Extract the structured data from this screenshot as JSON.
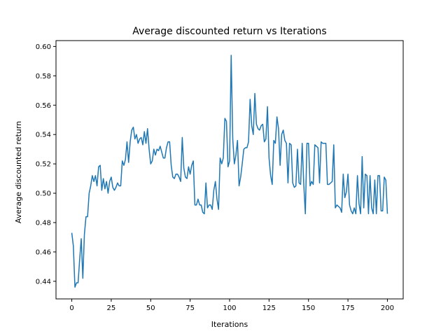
{
  "chart_data": {
    "type": "line",
    "title": "Average discounted return vs Iterations",
    "xlabel": "Iterations",
    "ylabel": "Average discounted return",
    "xlim": [
      -10,
      210
    ],
    "ylim": [
      0.428,
      0.604
    ],
    "x_ticks": [
      0,
      25,
      50,
      75,
      100,
      125,
      150,
      175,
      200
    ],
    "y_ticks": [
      0.44,
      0.46,
      0.48,
      0.5,
      0.52,
      0.54,
      0.56,
      0.58,
      0.6
    ],
    "y_tick_labels": [
      "0.44",
      "0.46",
      "0.48",
      "0.50",
      "0.52",
      "0.54",
      "0.56",
      "0.58",
      "0.60"
    ],
    "grid": false,
    "line_color": "#1f77b4",
    "series": [
      {
        "x_start": 0,
        "x_step": 1,
        "values": [
          0.473,
          0.464,
          0.436,
          0.439,
          0.439,
          0.455,
          0.469,
          0.442,
          0.472,
          0.484,
          0.484,
          0.5,
          0.505,
          0.512,
          0.508,
          0.512,
          0.505,
          0.518,
          0.519,
          0.502,
          0.51,
          0.503,
          0.508,
          0.5,
          0.508,
          0.511,
          0.504,
          0.502,
          0.504,
          0.507,
          0.505,
          0.505,
          0.522,
          0.519,
          0.523,
          0.535,
          0.521,
          0.535,
          0.543,
          0.545,
          0.537,
          0.54,
          0.534,
          0.537,
          0.538,
          0.533,
          0.542,
          0.534,
          0.544,
          0.53,
          0.52,
          0.522,
          0.53,
          0.526,
          0.53,
          0.529,
          0.532,
          0.528,
          0.524,
          0.524,
          0.531,
          0.535,
          0.535,
          0.519,
          0.511,
          0.51,
          0.513,
          0.513,
          0.511,
          0.508,
          0.538,
          0.517,
          0.511,
          0.51,
          0.518,
          0.513,
          0.519,
          0.522,
          0.492,
          0.492,
          0.496,
          0.492,
          0.492,
          0.487,
          0.486,
          0.507,
          0.49,
          0.492,
          0.492,
          0.489,
          0.502,
          0.508,
          0.496,
          0.489,
          0.524,
          0.52,
          0.524,
          0.551,
          0.549,
          0.518,
          0.522,
          0.594,
          0.537,
          0.52,
          0.526,
          0.536,
          0.505,
          0.511,
          0.52,
          0.53,
          0.531,
          0.531,
          0.535,
          0.564,
          0.546,
          0.54,
          0.568,
          0.547,
          0.544,
          0.543,
          0.546,
          0.547,
          0.535,
          0.537,
          0.559,
          0.524,
          0.512,
          0.506,
          0.536,
          0.534,
          0.552,
          0.544,
          0.519,
          0.54,
          0.543,
          0.536,
          0.534,
          0.507,
          0.534,
          0.533,
          0.507,
          0.504,
          0.505,
          0.53,
          0.507,
          0.506,
          0.534,
          0.506,
          0.486,
          0.534,
          0.534,
          0.505,
          0.508,
          0.506,
          0.533,
          0.532,
          0.531,
          0.507,
          0.535,
          0.534,
          0.534,
          0.534,
          0.506,
          0.506,
          0.507,
          0.508,
          0.533,
          0.49,
          0.492,
          0.491,
          0.49,
          0.487,
          0.513,
          0.497,
          0.501,
          0.513,
          0.492,
          0.488,
          0.486,
          0.49,
          0.486,
          0.512,
          0.493,
          0.486,
          0.525,
          0.49,
          0.513,
          0.512,
          0.486,
          0.512,
          0.49,
          0.486,
          0.509,
          0.486,
          0.512,
          0.512,
          0.488,
          0.488,
          0.511,
          0.509,
          0.486
        ]
      }
    ]
  }
}
